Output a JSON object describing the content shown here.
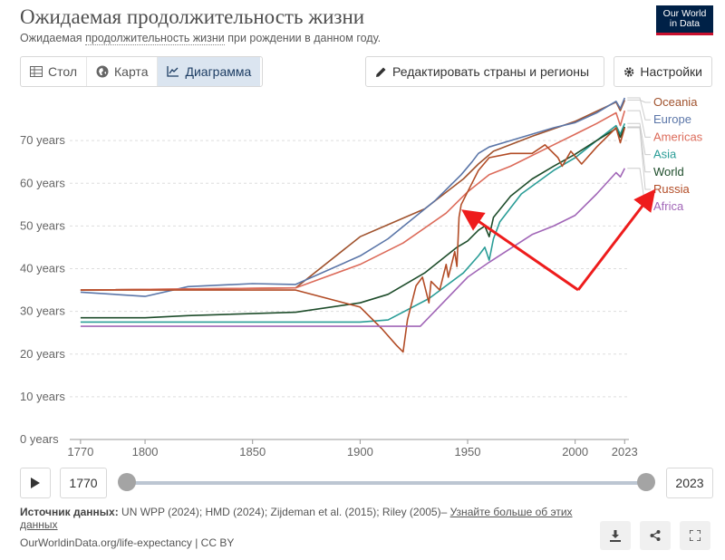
{
  "header": {
    "title": "Ожидаемая продолжительность жизни",
    "subtitle_prefix": "Ожидаемая ",
    "subtitle_link": "продолжительность жизни",
    "subtitle_suffix": " при рождении в данном году.",
    "logo_line1": "Our World",
    "logo_line2": "in Data"
  },
  "tabs": [
    {
      "label": "Стол",
      "icon": "table-icon"
    },
    {
      "label": "Карта",
      "icon": "globe-icon"
    },
    {
      "label": "Диаграмма",
      "icon": "line-chart-icon",
      "active": true
    }
  ],
  "toolbar": {
    "edit_label": "Редактировать страны и регионы",
    "settings_label": "Настройки"
  },
  "timeline": {
    "start_year": "1770",
    "end_year": "2023"
  },
  "footer": {
    "source_label": "Источник данных:",
    "source_text": " UN WPP (2024); HMD (2024); Zijdeman et al. (2015); Riley (2005)– ",
    "learn_more": "Узнайте больше об этих данных",
    "url_text": "OurWorldinData.org/life-expectancy | CC BY"
  },
  "colors": {
    "Oceania": "#a2559c",
    "Europe": "#4c6a9c",
    "Americas": "#e56e5a",
    "Asia": "#00847e",
    "World": "#00295b",
    "Russia": "#b16214",
    "Africa": "#a2559c",
    "arrow": "#ee1c1c"
  },
  "chart_data": {
    "type": "line",
    "xlim": [
      1765,
      2025
    ],
    "ylim": [
      0,
      80
    ],
    "yticks": [
      0,
      10,
      20,
      30,
      40,
      50,
      60,
      70
    ],
    "yunit": "years",
    "xticks": [
      1770,
      1800,
      1850,
      1900,
      1950,
      2000,
      2023
    ],
    "grid": "horizontal",
    "legend": "right",
    "series": [
      {
        "name": "Oceania",
        "color": "#a0522d",
        "points": [
          [
            1770,
            35
          ],
          [
            1870,
            35.5
          ],
          [
            1900,
            47.5
          ],
          [
            1930,
            54
          ],
          [
            1948,
            61
          ],
          [
            1955,
            64.5
          ],
          [
            1962,
            67.5
          ],
          [
            1980,
            71
          ],
          [
            2000,
            74.5
          ],
          [
            2019,
            79
          ],
          [
            2021,
            77
          ],
          [
            2023,
            79.5
          ]
        ]
      },
      {
        "name": "Europe",
        "color": "#5b76a8",
        "points": [
          [
            1770,
            34.5
          ],
          [
            1800,
            33.5
          ],
          [
            1820,
            35.8
          ],
          [
            1850,
            36.5
          ],
          [
            1870,
            36.3
          ],
          [
            1900,
            43
          ],
          [
            1913,
            47
          ],
          [
            1935,
            56
          ],
          [
            1947,
            62
          ],
          [
            1952,
            65
          ],
          [
            1955,
            67
          ],
          [
            1960,
            68.5
          ],
          [
            1970,
            70
          ],
          [
            1990,
            73
          ],
          [
            2000,
            74.2
          ],
          [
            2010,
            76.5
          ],
          [
            2019,
            79.2
          ],
          [
            2021,
            77.5
          ],
          [
            2023,
            80
          ]
        ]
      },
      {
        "name": "Americas",
        "color": "#dc6b5a",
        "points": [
          [
            1770,
            35
          ],
          [
            1870,
            35.5
          ],
          [
            1900,
            41
          ],
          [
            1920,
            46
          ],
          [
            1940,
            53
          ],
          [
            1950,
            58
          ],
          [
            1960,
            62
          ],
          [
            1970,
            64
          ],
          [
            1990,
            69
          ],
          [
            2000,
            71.5
          ],
          [
            2010,
            74
          ],
          [
            2019,
            76.5
          ],
          [
            2021,
            73.5
          ],
          [
            2023,
            77
          ]
        ]
      },
      {
        "name": "Asia",
        "color": "#2a9d97",
        "points": [
          [
            1770,
            27.5
          ],
          [
            1900,
            27.5
          ],
          [
            1913,
            28
          ],
          [
            1932,
            33
          ],
          [
            1948,
            39
          ],
          [
            1955,
            43
          ],
          [
            1958,
            45
          ],
          [
            1960,
            42
          ],
          [
            1962,
            47
          ],
          [
            1965,
            51
          ],
          [
            1975,
            57.5
          ],
          [
            1990,
            63
          ],
          [
            2000,
            66
          ],
          [
            2010,
            70
          ],
          [
            2019,
            73.5
          ],
          [
            2021,
            71.5
          ],
          [
            2023,
            74
          ]
        ]
      },
      {
        "name": "World",
        "color": "#1e4d2b",
        "points": [
          [
            1770,
            28.5
          ],
          [
            1800,
            28.5
          ],
          [
            1820,
            29
          ],
          [
            1870,
            29.8
          ],
          [
            1900,
            32
          ],
          [
            1913,
            34
          ],
          [
            1930,
            39
          ],
          [
            1945,
            45
          ],
          [
            1950,
            46.5
          ],
          [
            1955,
            49
          ],
          [
            1958,
            50
          ],
          [
            1960,
            47.5
          ],
          [
            1962,
            52
          ],
          [
            1970,
            57
          ],
          [
            1980,
            61
          ],
          [
            1990,
            64
          ],
          [
            2000,
            66.8
          ],
          [
            2010,
            70
          ],
          [
            2019,
            72.8
          ],
          [
            2021,
            70.8
          ],
          [
            2023,
            73.2
          ]
        ]
      },
      {
        "name": "Russia",
        "color": "#b24c26",
        "points": [
          [
            1770,
            35
          ],
          [
            1870,
            35
          ],
          [
            1900,
            31
          ],
          [
            1910,
            26
          ],
          [
            1917,
            22
          ],
          [
            1920,
            20.5
          ],
          [
            1922,
            28
          ],
          [
            1926,
            36
          ],
          [
            1929,
            38
          ],
          [
            1932,
            32
          ],
          [
            1933,
            37
          ],
          [
            1937,
            35
          ],
          [
            1940,
            41
          ],
          [
            1941,
            38
          ],
          [
            1944,
            44
          ],
          [
            1945,
            40.5
          ],
          [
            1946,
            52
          ],
          [
            1947,
            55
          ],
          [
            1950,
            58
          ],
          [
            1955,
            63
          ],
          [
            1960,
            66
          ],
          [
            1970,
            67
          ],
          [
            1980,
            67
          ],
          [
            1986,
            69
          ],
          [
            1992,
            66
          ],
          [
            1994,
            64
          ],
          [
            1998,
            67.5
          ],
          [
            2003,
            64.5
          ],
          [
            2010,
            68.5
          ],
          [
            2019,
            73
          ],
          [
            2021,
            69.5
          ],
          [
            2023,
            73
          ]
        ]
      },
      {
        "name": "Africa",
        "color": "#a166b7",
        "points": [
          [
            1770,
            26.5
          ],
          [
            1900,
            26.5
          ],
          [
            1928,
            26.5
          ],
          [
            1950,
            38
          ],
          [
            1960,
            41.5
          ],
          [
            1980,
            48
          ],
          [
            1990,
            50
          ],
          [
            2000,
            52.5
          ],
          [
            2010,
            57.5
          ],
          [
            2019,
            62.5
          ],
          [
            2021,
            61.5
          ],
          [
            2023,
            63.5
          ]
        ]
      }
    ]
  }
}
